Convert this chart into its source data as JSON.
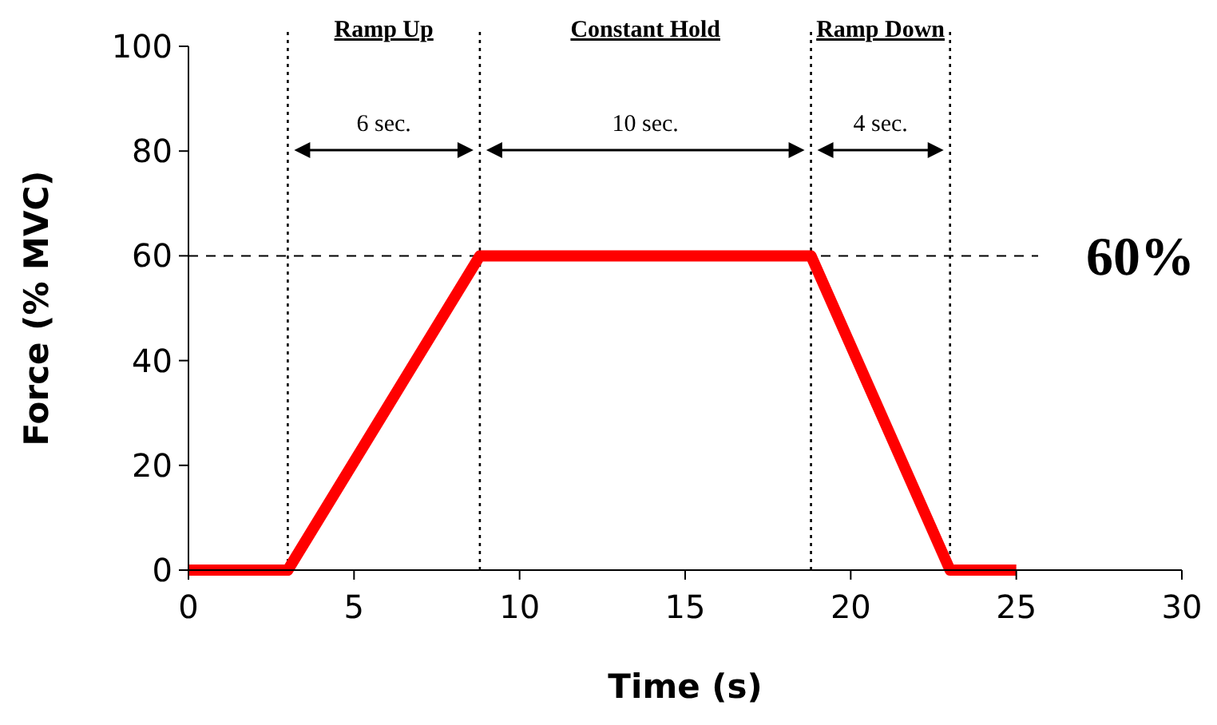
{
  "chart_data": {
    "type": "line",
    "xlabel": "Time (s)",
    "ylabel": "Force (% MVC)",
    "x": [
      0,
      3,
      8.8,
      18.8,
      23,
      25
    ],
    "series": [
      {
        "color": "#ff0000",
        "values": [
          0,
          0,
          60,
          60,
          0,
          0
        ]
      }
    ],
    "xlim": [
      0,
      30
    ],
    "xticks": [
      0,
      5,
      10,
      15,
      20,
      25,
      30
    ],
    "ylim": [
      0,
      100
    ],
    "yticks": [
      0,
      20,
      40,
      60,
      80,
      100
    ],
    "grid": false,
    "marker": "none",
    "line_style": "solid",
    "ref_lines": [
      {
        "axis": "y",
        "value": 60,
        "label": "60%",
        "line_style": "dashed",
        "color": "#000000"
      },
      {
        "axis": "x",
        "value": 3,
        "line_style": "dotted",
        "color": "#000000"
      },
      {
        "axis": "x",
        "value": 8.8,
        "line_style": "dotted",
        "color": "#000000"
      },
      {
        "axis": "x",
        "value": 18.8,
        "line_style": "dotted",
        "color": "#000000"
      },
      {
        "axis": "x",
        "value": 23,
        "line_style": "dotted",
        "color": "#000000"
      }
    ],
    "annotations": [
      "Ramp Up",
      "Constant Hold",
      "Ramp Down",
      "6 sec.",
      "10 sec.",
      "4 sec."
    ]
  }
}
